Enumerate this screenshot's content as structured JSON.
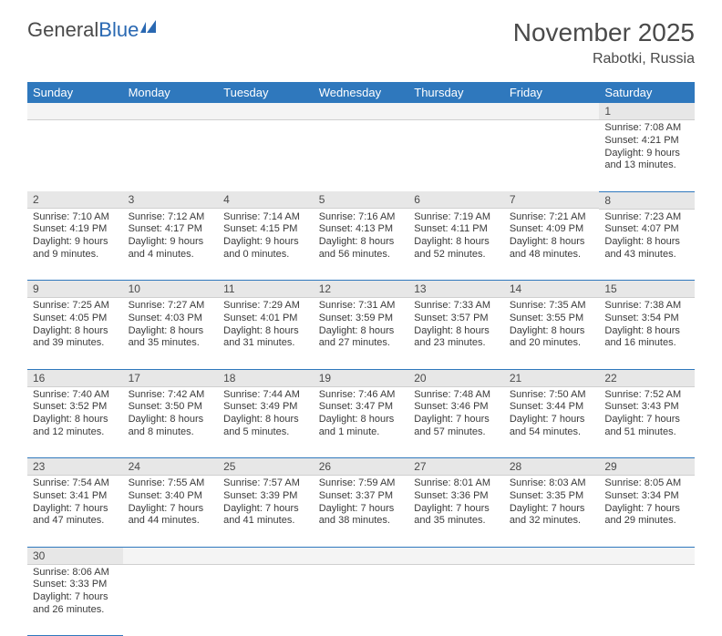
{
  "logo": {
    "part1": "General",
    "part2": "Blue"
  },
  "title": "November 2025",
  "location": "Rabotki, Russia",
  "colors": {
    "headerBg": "#2f78bd",
    "headerText": "#ffffff",
    "dayNumBg": "#e7e7e7",
    "rowBorder": "#2f78bd",
    "textColor": "#3a3a3a",
    "logoBlue": "#2968b2"
  },
  "dayHeaders": [
    "Sunday",
    "Monday",
    "Tuesday",
    "Wednesday",
    "Thursday",
    "Friday",
    "Saturday"
  ],
  "weeks": [
    [
      null,
      null,
      null,
      null,
      null,
      null,
      {
        "n": "1",
        "sr": "Sunrise: 7:08 AM",
        "ss": "Sunset: 4:21 PM",
        "d1": "Daylight: 9 hours",
        "d2": "and 13 minutes."
      }
    ],
    [
      {
        "n": "2",
        "sr": "Sunrise: 7:10 AM",
        "ss": "Sunset: 4:19 PM",
        "d1": "Daylight: 9 hours",
        "d2": "and 9 minutes."
      },
      {
        "n": "3",
        "sr": "Sunrise: 7:12 AM",
        "ss": "Sunset: 4:17 PM",
        "d1": "Daylight: 9 hours",
        "d2": "and 4 minutes."
      },
      {
        "n": "4",
        "sr": "Sunrise: 7:14 AM",
        "ss": "Sunset: 4:15 PM",
        "d1": "Daylight: 9 hours",
        "d2": "and 0 minutes."
      },
      {
        "n": "5",
        "sr": "Sunrise: 7:16 AM",
        "ss": "Sunset: 4:13 PM",
        "d1": "Daylight: 8 hours",
        "d2": "and 56 minutes."
      },
      {
        "n": "6",
        "sr": "Sunrise: 7:19 AM",
        "ss": "Sunset: 4:11 PM",
        "d1": "Daylight: 8 hours",
        "d2": "and 52 minutes."
      },
      {
        "n": "7",
        "sr": "Sunrise: 7:21 AM",
        "ss": "Sunset: 4:09 PM",
        "d1": "Daylight: 8 hours",
        "d2": "and 48 minutes."
      },
      {
        "n": "8",
        "sr": "Sunrise: 7:23 AM",
        "ss": "Sunset: 4:07 PM",
        "d1": "Daylight: 8 hours",
        "d2": "and 43 minutes."
      }
    ],
    [
      {
        "n": "9",
        "sr": "Sunrise: 7:25 AM",
        "ss": "Sunset: 4:05 PM",
        "d1": "Daylight: 8 hours",
        "d2": "and 39 minutes."
      },
      {
        "n": "10",
        "sr": "Sunrise: 7:27 AM",
        "ss": "Sunset: 4:03 PM",
        "d1": "Daylight: 8 hours",
        "d2": "and 35 minutes."
      },
      {
        "n": "11",
        "sr": "Sunrise: 7:29 AM",
        "ss": "Sunset: 4:01 PM",
        "d1": "Daylight: 8 hours",
        "d2": "and 31 minutes."
      },
      {
        "n": "12",
        "sr": "Sunrise: 7:31 AM",
        "ss": "Sunset: 3:59 PM",
        "d1": "Daylight: 8 hours",
        "d2": "and 27 minutes."
      },
      {
        "n": "13",
        "sr": "Sunrise: 7:33 AM",
        "ss": "Sunset: 3:57 PM",
        "d1": "Daylight: 8 hours",
        "d2": "and 23 minutes."
      },
      {
        "n": "14",
        "sr": "Sunrise: 7:35 AM",
        "ss": "Sunset: 3:55 PM",
        "d1": "Daylight: 8 hours",
        "d2": "and 20 minutes."
      },
      {
        "n": "15",
        "sr": "Sunrise: 7:38 AM",
        "ss": "Sunset: 3:54 PM",
        "d1": "Daylight: 8 hours",
        "d2": "and 16 minutes."
      }
    ],
    [
      {
        "n": "16",
        "sr": "Sunrise: 7:40 AM",
        "ss": "Sunset: 3:52 PM",
        "d1": "Daylight: 8 hours",
        "d2": "and 12 minutes."
      },
      {
        "n": "17",
        "sr": "Sunrise: 7:42 AM",
        "ss": "Sunset: 3:50 PM",
        "d1": "Daylight: 8 hours",
        "d2": "and 8 minutes."
      },
      {
        "n": "18",
        "sr": "Sunrise: 7:44 AM",
        "ss": "Sunset: 3:49 PM",
        "d1": "Daylight: 8 hours",
        "d2": "and 5 minutes."
      },
      {
        "n": "19",
        "sr": "Sunrise: 7:46 AM",
        "ss": "Sunset: 3:47 PM",
        "d1": "Daylight: 8 hours",
        "d2": "and 1 minute."
      },
      {
        "n": "20",
        "sr": "Sunrise: 7:48 AM",
        "ss": "Sunset: 3:46 PM",
        "d1": "Daylight: 7 hours",
        "d2": "and 57 minutes."
      },
      {
        "n": "21",
        "sr": "Sunrise: 7:50 AM",
        "ss": "Sunset: 3:44 PM",
        "d1": "Daylight: 7 hours",
        "d2": "and 54 minutes."
      },
      {
        "n": "22",
        "sr": "Sunrise: 7:52 AM",
        "ss": "Sunset: 3:43 PM",
        "d1": "Daylight: 7 hours",
        "d2": "and 51 minutes."
      }
    ],
    [
      {
        "n": "23",
        "sr": "Sunrise: 7:54 AM",
        "ss": "Sunset: 3:41 PM",
        "d1": "Daylight: 7 hours",
        "d2": "and 47 minutes."
      },
      {
        "n": "24",
        "sr": "Sunrise: 7:55 AM",
        "ss": "Sunset: 3:40 PM",
        "d1": "Daylight: 7 hours",
        "d2": "and 44 minutes."
      },
      {
        "n": "25",
        "sr": "Sunrise: 7:57 AM",
        "ss": "Sunset: 3:39 PM",
        "d1": "Daylight: 7 hours",
        "d2": "and 41 minutes."
      },
      {
        "n": "26",
        "sr": "Sunrise: 7:59 AM",
        "ss": "Sunset: 3:37 PM",
        "d1": "Daylight: 7 hours",
        "d2": "and 38 minutes."
      },
      {
        "n": "27",
        "sr": "Sunrise: 8:01 AM",
        "ss": "Sunset: 3:36 PM",
        "d1": "Daylight: 7 hours",
        "d2": "and 35 minutes."
      },
      {
        "n": "28",
        "sr": "Sunrise: 8:03 AM",
        "ss": "Sunset: 3:35 PM",
        "d1": "Daylight: 7 hours",
        "d2": "and 32 minutes."
      },
      {
        "n": "29",
        "sr": "Sunrise: 8:05 AM",
        "ss": "Sunset: 3:34 PM",
        "d1": "Daylight: 7 hours",
        "d2": "and 29 minutes."
      }
    ],
    [
      {
        "n": "30",
        "sr": "Sunrise: 8:06 AM",
        "ss": "Sunset: 3:33 PM",
        "d1": "Daylight: 7 hours",
        "d2": "and 26 minutes."
      },
      null,
      null,
      null,
      null,
      null,
      null
    ]
  ]
}
